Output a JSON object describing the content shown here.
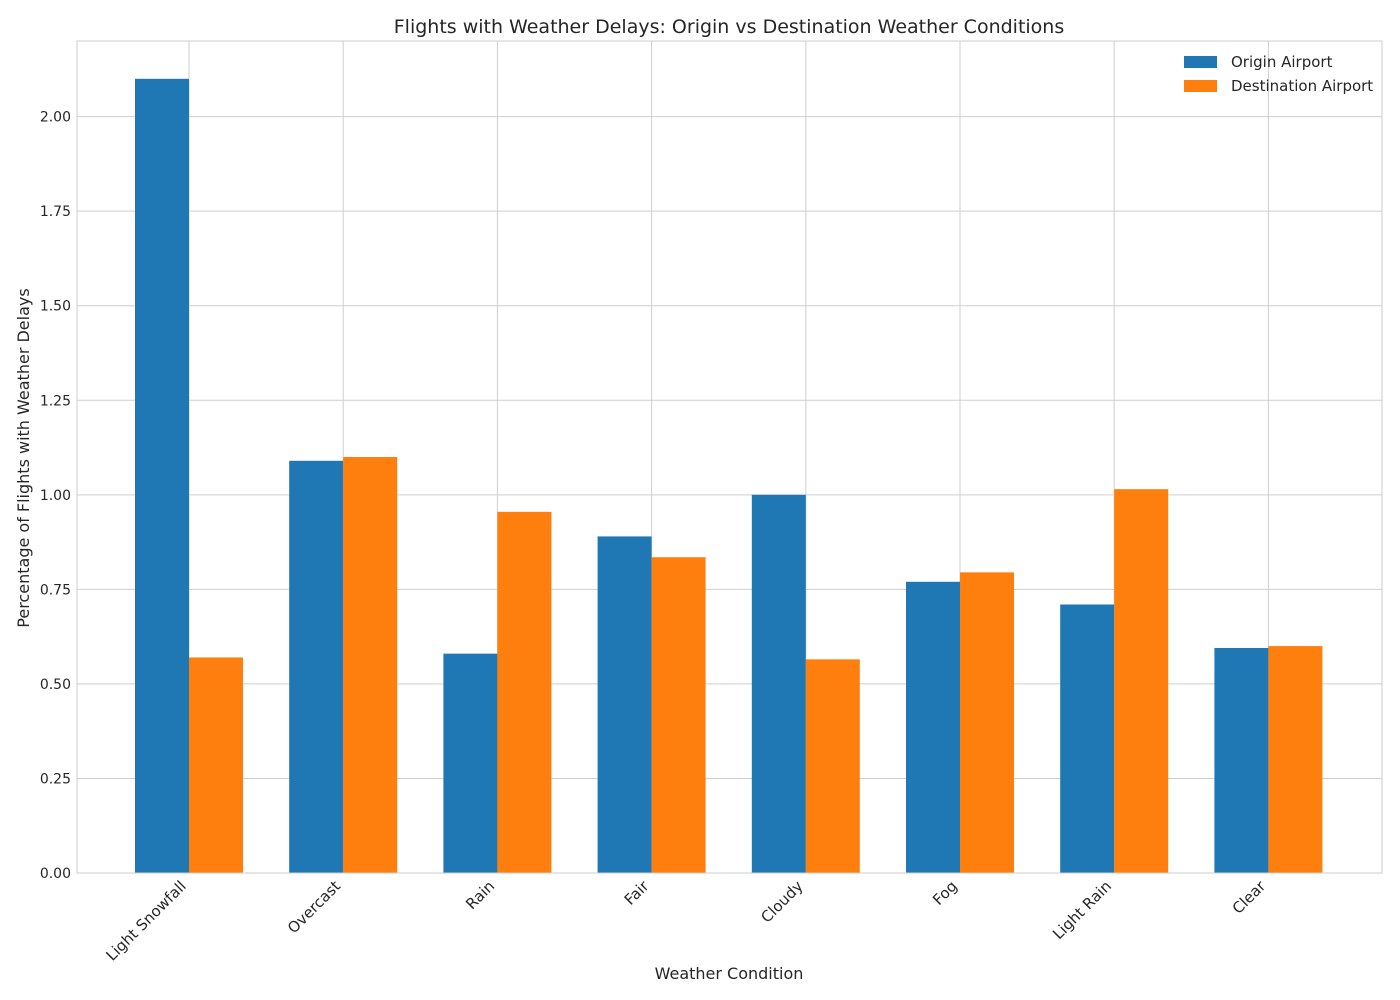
{
  "chart_data": {
    "type": "bar",
    "title": "Flights with Weather Delays: Origin vs Destination Weather Conditions",
    "xlabel": "Weather Condition",
    "ylabel": "Percentage of Flights with Weather Delays",
    "categories": [
      "Light Snowfall",
      "Overcast",
      "Rain",
      "Fair",
      "Cloudy",
      "Fog",
      "Light Rain",
      "Clear"
    ],
    "series": [
      {
        "name": "Origin Airport",
        "color": "#1f77b4",
        "values": [
          2.1,
          1.09,
          0.58,
          0.89,
          1.0,
          0.77,
          0.71,
          0.595
        ]
      },
      {
        "name": "Destination Airport",
        "color": "#ff7f0e",
        "values": [
          0.57,
          1.1,
          0.955,
          0.835,
          0.565,
          0.795,
          1.015,
          0.6
        ]
      }
    ],
    "ylim": [
      0,
      2.2
    ],
    "yticks": [
      "0.00",
      "0.25",
      "0.50",
      "0.75",
      "1.00",
      "1.25",
      "1.50",
      "1.75",
      "2.00"
    ],
    "grid": true,
    "legend_position": "top-right"
  }
}
